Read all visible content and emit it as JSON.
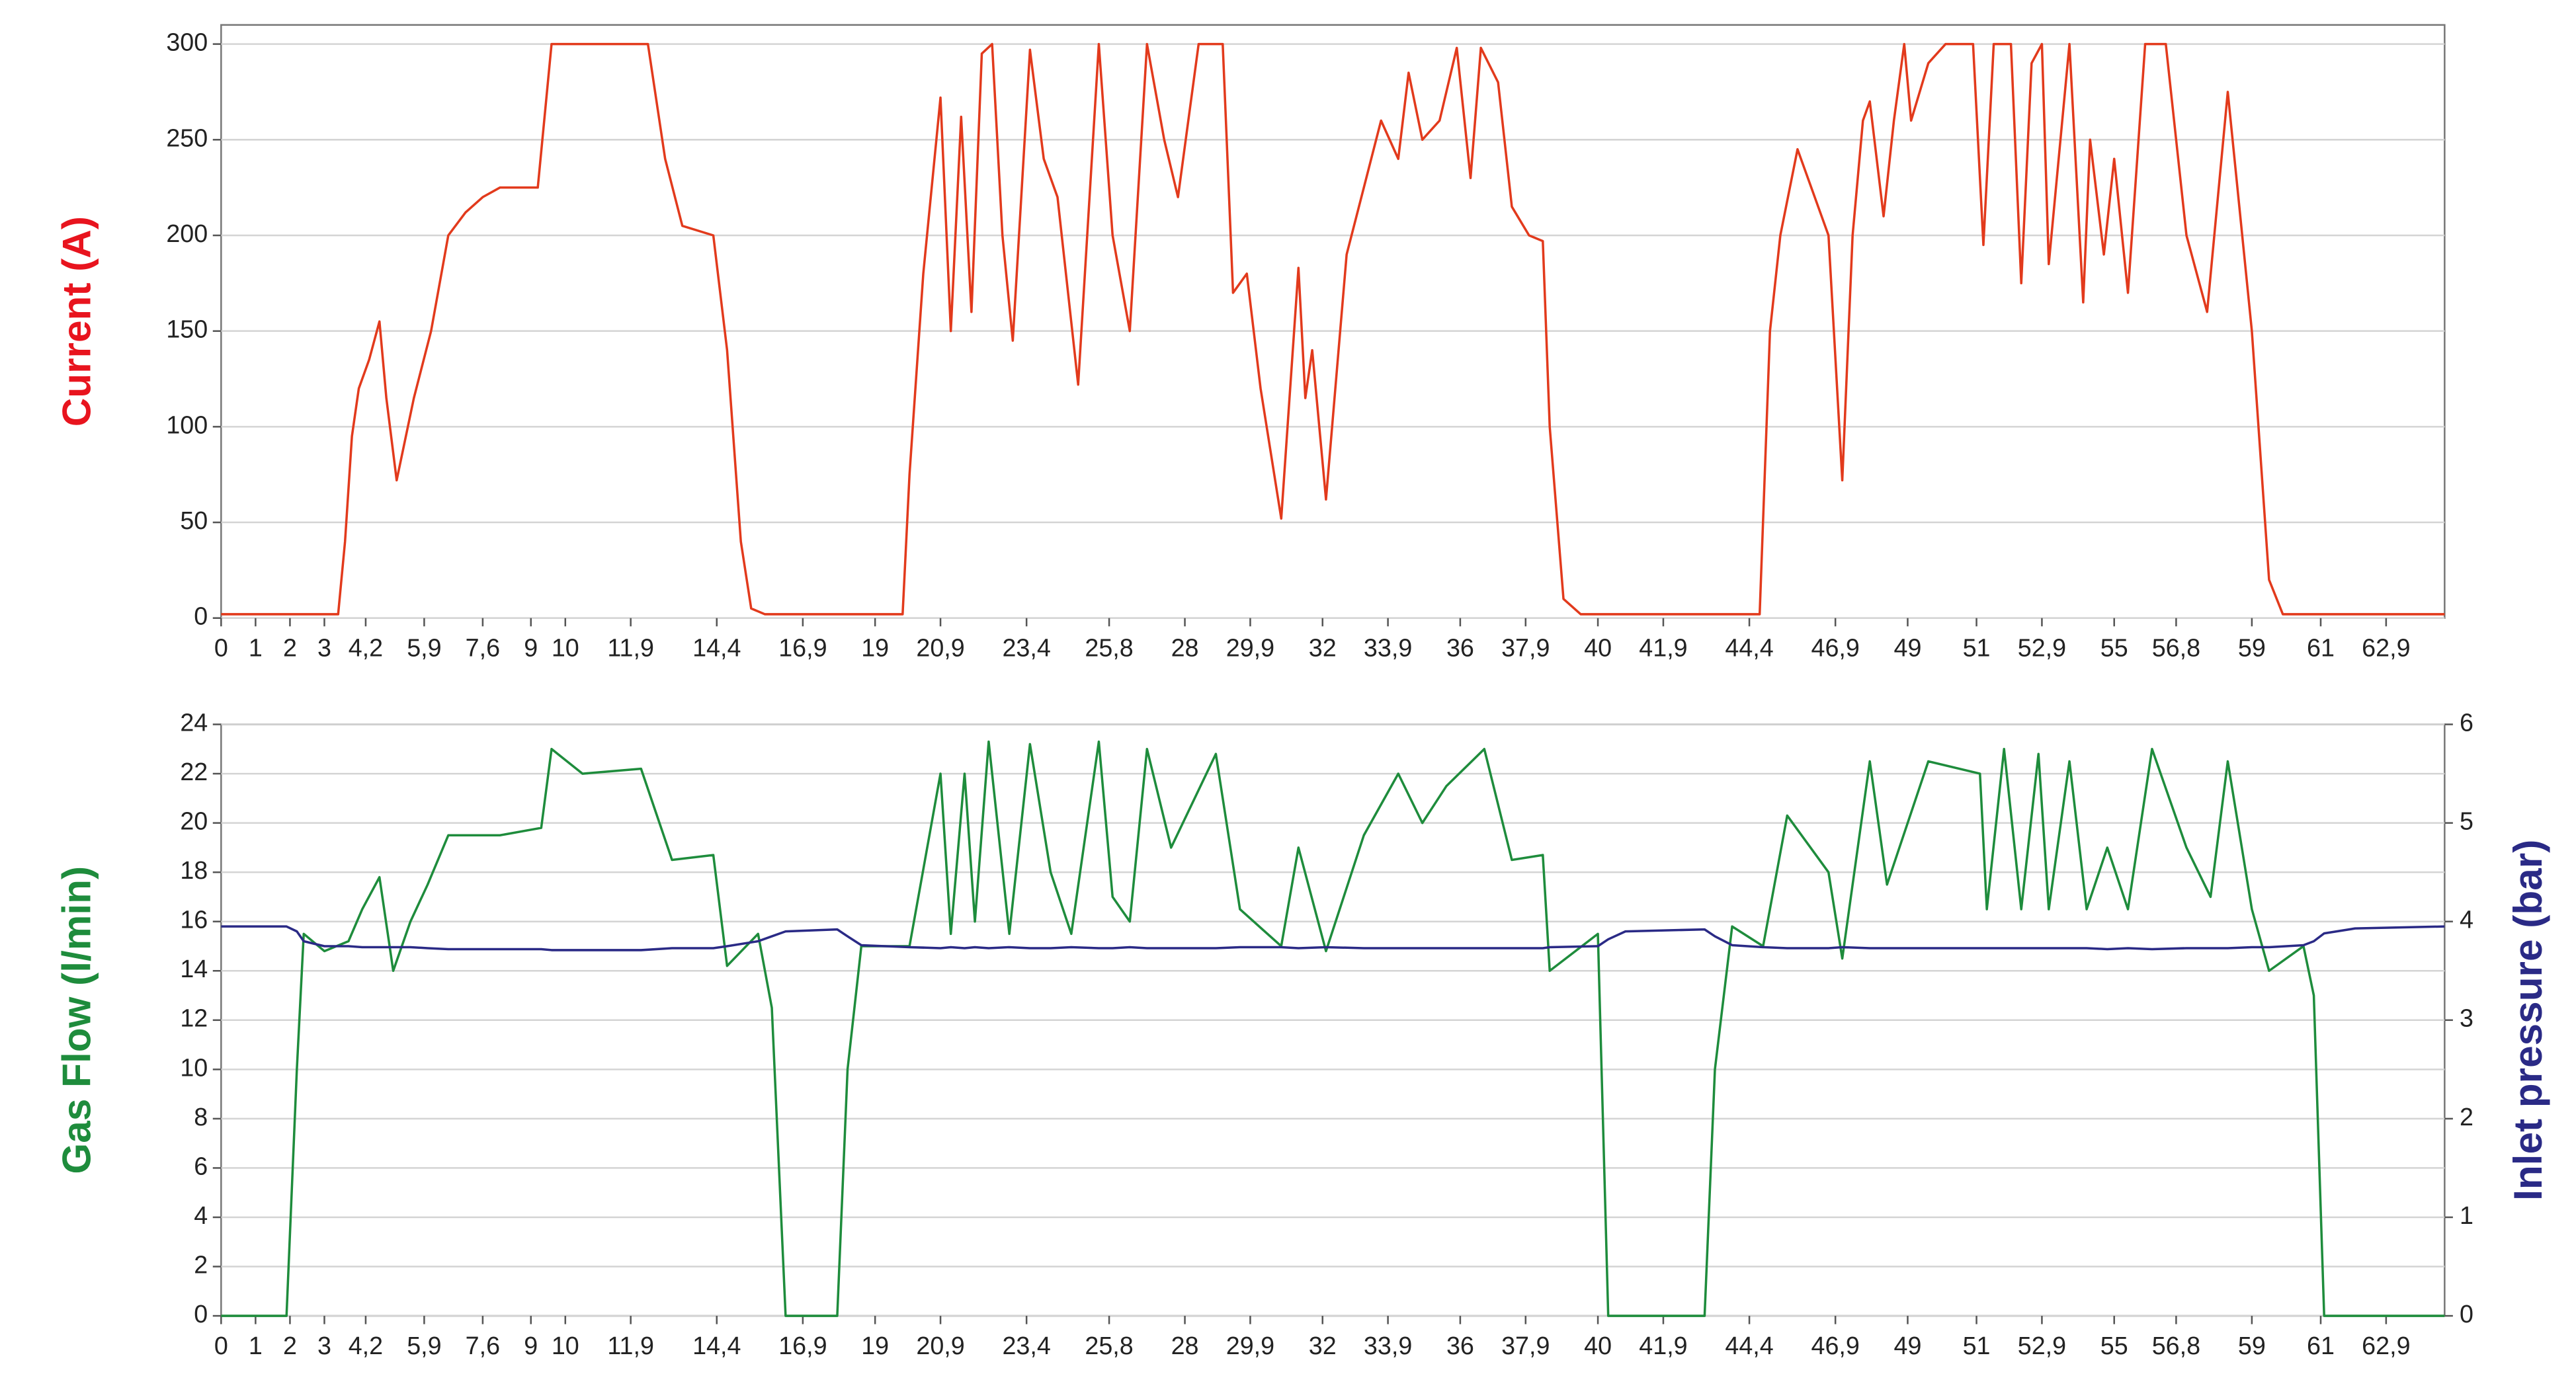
{
  "chart_data": [
    {
      "type": "line",
      "ylabel": "Current (A)",
      "x": [
        0,
        3.4,
        3.6,
        3.8,
        4.0,
        4.3,
        4.6,
        4.8,
        5.1,
        5.6,
        6.1,
        6.6,
        7.1,
        7.6,
        8.1,
        9.2,
        9.6,
        12.4,
        12.9,
        13.4,
        14.3,
        14.7,
        15.1,
        15.4,
        15.8,
        19.8,
        20.0,
        20.4,
        20.9,
        21.2,
        21.5,
        21.8,
        22.1,
        22.4,
        22.7,
        23.0,
        23.5,
        23.9,
        24.3,
        24.9,
        25.5,
        25.9,
        26.4,
        26.9,
        27.4,
        27.8,
        28.4,
        29.1,
        29.4,
        29.8,
        30.2,
        30.8,
        31.3,
        31.5,
        31.7,
        32.1,
        32.7,
        33.2,
        33.7,
        34.2,
        34.5,
        34.9,
        35.4,
        35.9,
        36.3,
        36.6,
        37.1,
        37.5,
        38.0,
        38.4,
        38.6,
        39.0,
        39.5,
        44.7,
        45.0,
        45.3,
        45.8,
        46.5,
        46.7,
        47.1,
        47.4,
        47.7,
        47.9,
        48.3,
        48.6,
        48.9,
        49.1,
        49.6,
        50.1,
        50.9,
        51.2,
        51.5,
        52.0,
        52.3,
        52.6,
        52.9,
        53.1,
        53.7,
        54.1,
        54.3,
        54.7,
        55.0,
        55.4,
        55.9,
        56.5,
        57.1,
        57.7,
        58.3,
        59.0,
        59.5,
        59.9,
        64.6
      ],
      "series": [
        {
          "color": "#e23a1c",
          "values": [
            2,
            2,
            40,
            95,
            120,
            135,
            155,
            115,
            72,
            115,
            150,
            200,
            212,
            220,
            225,
            225,
            300,
            300,
            240,
            205,
            200,
            140,
            40,
            5,
            2,
            2,
            75,
            180,
            272,
            150,
            262,
            160,
            295,
            300,
            200,
            145,
            297,
            240,
            220,
            122,
            300,
            200,
            150,
            300,
            250,
            220,
            300,
            300,
            170,
            180,
            120,
            52,
            183,
            115,
            140,
            62,
            190,
            225,
            260,
            240,
            285,
            250,
            260,
            298,
            230,
            298,
            280,
            215,
            200,
            197,
            100,
            10,
            2,
            2,
            150,
            200,
            245,
            210,
            200,
            72,
            200,
            260,
            270,
            210,
            260,
            300,
            260,
            290,
            300,
            300,
            195,
            300,
            300,
            175,
            290,
            300,
            185,
            300,
            165,
            250,
            190,
            240,
            170,
            300,
            300,
            200,
            160,
            275,
            150,
            20,
            2,
            2
          ]
        }
      ],
      "xlim": [
        0,
        64.6
      ],
      "xticks": [
        0,
        1,
        2,
        3,
        {
          "value": 4.2,
          "label": "4,2"
        },
        {
          "value": 5.9,
          "label": "5,9"
        },
        {
          "value": 7.6,
          "label": "7,6"
        },
        9,
        10,
        {
          "value": 11.9,
          "label": "11,9"
        },
        {
          "value": 14.4,
          "label": "14,4"
        },
        {
          "value": 16.9,
          "label": "16,9"
        },
        19,
        {
          "value": 20.9,
          "label": "20,9"
        },
        {
          "value": 23.4,
          "label": "23,4"
        },
        {
          "value": 25.8,
          "label": "25,8"
        },
        28,
        {
          "value": 29.9,
          "label": "29,9"
        },
        32,
        {
          "value": 33.9,
          "label": "33,9"
        },
        36,
        {
          "value": 37.9,
          "label": "37,9"
        },
        40,
        {
          "value": 41.9,
          "label": "41,9"
        },
        {
          "value": 44.4,
          "label": "44,4"
        },
        {
          "value": 46.9,
          "label": "46,9"
        },
        49,
        51,
        {
          "value": 52.9,
          "label": "52,9"
        },
        55,
        {
          "value": 56.8,
          "label": "56,8"
        },
        59,
        61,
        {
          "value": 62.9,
          "label": "62,9"
        }
      ],
      "ylim": [
        0,
        310
      ],
      "yticks": [
        0,
        50,
        100,
        150,
        200,
        250,
        300
      ],
      "grid": true,
      "ylabel_color": "#e8141e"
    },
    {
      "type": "line",
      "ylabel": "Gas Flow (l/min)",
      "y2label": "Inlet pressure (bar)",
      "x": [
        0,
        1.9,
        2.2,
        2.4,
        3.0,
        3.7,
        4.1,
        4.6,
        5.0,
        5.5,
        6.0,
        6.6,
        8.1,
        9.3,
        9.6,
        10.5,
        12.2,
        13.1,
        14.3,
        14.7,
        15.6,
        16.0,
        16.4,
        17.9,
        18.2,
        18.6,
        20.0,
        20.9,
        21.2,
        21.6,
        21.9,
        22.3,
        22.9,
        23.5,
        24.1,
        24.7,
        25.5,
        25.9,
        26.4,
        26.9,
        27.6,
        28.9,
        29.6,
        30.8,
        31.3,
        32.1,
        33.2,
        34.2,
        34.9,
        35.6,
        36.7,
        37.5,
        38.4,
        38.6,
        40.0,
        40.3,
        40.8,
        43.1,
        43.4,
        43.9,
        44.8,
        45.5,
        46.7,
        47.1,
        47.9,
        48.4,
        49.6,
        51.1,
        51.3,
        51.8,
        52.3,
        52.8,
        53.1,
        53.7,
        54.2,
        54.8,
        55.4,
        56.1,
        57.1,
        57.8,
        58.3,
        59.0,
        59.5,
        60.5,
        60.8,
        61.1,
        62.0,
        64.6
      ],
      "series": [
        {
          "color": "#1e8c3c",
          "values": [
            0,
            0,
            10,
            15.5,
            14.8,
            15.2,
            16.5,
            17.8,
            14,
            16,
            17.5,
            19.5,
            19.5,
            19.8,
            23,
            22,
            22.2,
            18.5,
            18.7,
            14.2,
            15.5,
            12.5,
            0,
            0,
            10,
            15,
            15,
            22,
            15.5,
            22,
            16,
            23.3,
            15.5,
            23.2,
            18,
            15.5,
            23.3,
            17,
            16,
            23,
            19,
            22.8,
            16.5,
            15,
            19,
            14.8,
            19.5,
            22,
            20,
            21.5,
            23,
            18.5,
            18.7,
            14,
            15.5,
            0,
            0,
            0,
            10,
            15.8,
            15,
            20.3,
            18,
            14.5,
            22.5,
            17.5,
            22.5,
            22,
            16.5,
            23,
            16.5,
            22.8,
            16.5,
            22.5,
            16.5,
            19,
            16.5,
            23,
            19,
            17,
            22.5,
            16.5,
            14,
            15,
            13,
            0,
            0,
            0
          ]
        },
        {
          "color": "#2a2a86",
          "axis": "y2",
          "values": [
            3.95,
            3.95,
            3.9,
            3.8,
            3.75,
            3.75,
            3.74,
            3.74,
            3.74,
            3.74,
            3.73,
            3.72,
            3.72,
            3.72,
            3.71,
            3.71,
            3.71,
            3.73,
            3.73,
            3.75,
            3.8,
            3.85,
            3.9,
            3.92,
            3.85,
            3.76,
            3.74,
            3.73,
            3.74,
            3.73,
            3.74,
            3.73,
            3.74,
            3.73,
            3.73,
            3.74,
            3.73,
            3.73,
            3.74,
            3.73,
            3.73,
            3.73,
            3.74,
            3.74,
            3.73,
            3.74,
            3.73,
            3.73,
            3.73,
            3.73,
            3.73,
            3.73,
            3.73,
            3.74,
            3.75,
            3.82,
            3.9,
            3.92,
            3.85,
            3.76,
            3.74,
            3.73,
            3.73,
            3.74,
            3.73,
            3.73,
            3.73,
            3.73,
            3.73,
            3.73,
            3.73,
            3.73,
            3.73,
            3.73,
            3.73,
            3.72,
            3.73,
            3.72,
            3.73,
            3.73,
            3.73,
            3.74,
            3.74,
            3.76,
            3.8,
            3.88,
            3.93,
            3.95
          ]
        }
      ],
      "xlim": [
        0,
        64.6
      ],
      "xticks": [
        0,
        1,
        2,
        3,
        {
          "value": 4.2,
          "label": "4,2"
        },
        {
          "value": 5.9,
          "label": "5,9"
        },
        {
          "value": 7.6,
          "label": "7,6"
        },
        9,
        10,
        {
          "value": 11.9,
          "label": "11,9"
        },
        {
          "value": 14.4,
          "label": "14,4"
        },
        {
          "value": 16.9,
          "label": "16,9"
        },
        19,
        {
          "value": 20.9,
          "label": "20,9"
        },
        {
          "value": 23.4,
          "label": "23,4"
        },
        {
          "value": 25.8,
          "label": "25,8"
        },
        28,
        {
          "value": 29.9,
          "label": "29,9"
        },
        32,
        {
          "value": 33.9,
          "label": "33,9"
        },
        36,
        {
          "value": 37.9,
          "label": "37,9"
        },
        40,
        {
          "value": 41.9,
          "label": "41,9"
        },
        {
          "value": 44.4,
          "label": "44,4"
        },
        {
          "value": 46.9,
          "label": "46,9"
        },
        49,
        51,
        {
          "value": 52.9,
          "label": "52,9"
        },
        55,
        {
          "value": 56.8,
          "label": "56,8"
        },
        59,
        61,
        {
          "value": 62.9,
          "label": "62,9"
        }
      ],
      "ylim": [
        0,
        24
      ],
      "yticks": [
        0,
        2,
        4,
        6,
        8,
        10,
        12,
        14,
        16,
        18,
        20,
        22,
        24
      ],
      "y2lim": [
        0,
        6
      ],
      "y2ticks": [
        0,
        1,
        2,
        3,
        4,
        5,
        6
      ],
      "grid": true,
      "ylabel_color": "#1e8c3c",
      "y2label_color": "#2a2a86"
    }
  ]
}
